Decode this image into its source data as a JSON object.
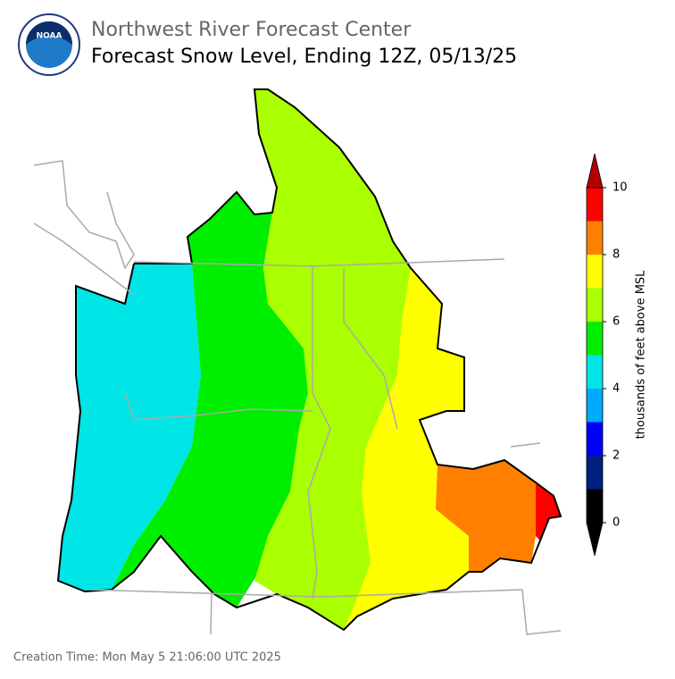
{
  "header": {
    "title": "Northwest River Forecast Center",
    "subtitle": "Forecast Snow Level, Ending 12Z, 05/13/25",
    "logo_text": "NOAA"
  },
  "colorbar": {
    "label": "thousands of feet above MSL",
    "lim": [
      0,
      10
    ],
    "ticks": [
      0,
      2,
      4,
      6,
      8,
      10
    ],
    "levels": [
      0,
      1,
      2,
      3,
      4,
      5,
      6,
      7,
      8,
      9,
      10
    ],
    "colors": [
      "#000000",
      "#002080",
      "#0000ff",
      "#00aaff",
      "#00e5e5",
      "#00ee00",
      "#aaff00",
      "#ffff00",
      "#ff8000",
      "#ff0000"
    ],
    "under_color": "#000000",
    "over_color": "#b00000"
  },
  "footer": {
    "creation_time": "Creation Time: Mon May 5 21:06:00 UTC 2025"
  }
}
